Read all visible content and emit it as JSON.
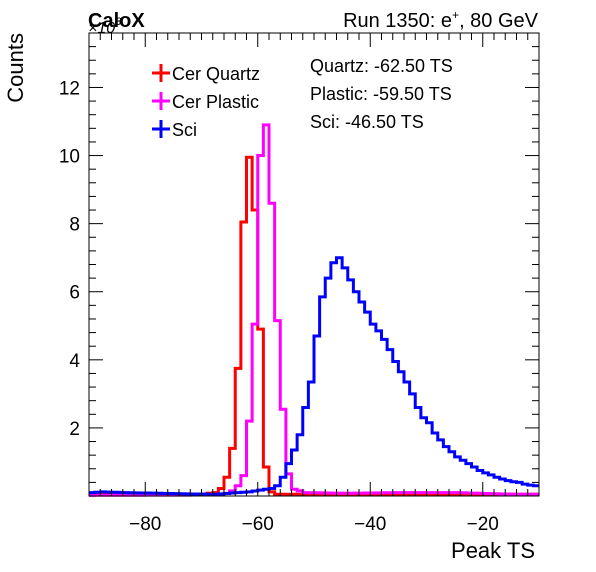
{
  "header": {
    "left_label": "CaloX",
    "exponent_label": "×10",
    "exponent_power": "3",
    "run_prefix": "Run 1350: e",
    "run_sup": "+",
    "run_suffix": ", 80 GeV"
  },
  "annotations": [
    "Quartz: -62.50 TS",
    "Plastic: -59.50 TS",
    "Sci: -46.50 TS"
  ],
  "chart_data": {
    "type": "line",
    "xlabel": "Peak TS",
    "ylabel": "Counts",
    "y_multiplier": 1000,
    "xlim": [
      -90,
      -10
    ],
    "ylim": [
      0,
      13.6
    ],
    "x_ticks": [
      -80,
      -60,
      -40,
      -20
    ],
    "x_tick_labels": [
      "−80",
      "−60",
      "−40",
      "−20"
    ],
    "y_ticks": [
      2,
      4,
      6,
      8,
      10,
      12
    ],
    "y_tick_labels": [
      "2",
      "4",
      "6",
      "8",
      "10",
      "12"
    ],
    "bin_width": 1,
    "legend_position": "top-left",
    "series": [
      {
        "name": "Cer Quartz",
        "color": "#ff0000",
        "bins": [
          {
            "x": -90,
            "y": 0.06
          },
          {
            "x": -85,
            "y": 0.06
          },
          {
            "x": -75,
            "y": 0.05
          },
          {
            "x": -70,
            "y": 0.06
          },
          {
            "x": -68,
            "y": 0.1
          },
          {
            "x": -67,
            "y": 0.22
          },
          {
            "x": -66,
            "y": 0.55
          },
          {
            "x": -65,
            "y": 1.4
          },
          {
            "x": -64,
            "y": 3.75
          },
          {
            "x": -63,
            "y": 8.05
          },
          {
            "x": -62,
            "y": 9.95
          },
          {
            "x": -61,
            "y": 8.4
          },
          {
            "x": -60,
            "y": 4.9
          },
          {
            "x": -59,
            "y": 0.85
          },
          {
            "x": -58,
            "y": 0.12
          },
          {
            "x": -57,
            "y": 0.05
          },
          {
            "x": -10,
            "y": 0.05
          }
        ]
      },
      {
        "name": "Cer Plastic",
        "color": "#ff00ff",
        "bins": [
          {
            "x": -90,
            "y": 0.02
          },
          {
            "x": -67,
            "y": 0.03
          },
          {
            "x": -66,
            "y": 0.08
          },
          {
            "x": -65,
            "y": 0.15
          },
          {
            "x": -64,
            "y": 0.3
          },
          {
            "x": -63,
            "y": 0.6
          },
          {
            "x": -62,
            "y": 2.2
          },
          {
            "x": -61,
            "y": 5.05
          },
          {
            "x": -60,
            "y": 10.0
          },
          {
            "x": -59,
            "y": 10.9
          },
          {
            "x": -58,
            "y": 8.6
          },
          {
            "x": -57,
            "y": 5.15
          },
          {
            "x": -56,
            "y": 2.55
          },
          {
            "x": -55,
            "y": 0.65
          },
          {
            "x": -54,
            "y": 0.2
          },
          {
            "x": -53,
            "y": 0.15
          },
          {
            "x": -52,
            "y": 0.1
          },
          {
            "x": -45,
            "y": 0.08
          },
          {
            "x": -35,
            "y": 0.1
          },
          {
            "x": -25,
            "y": 0.1
          },
          {
            "x": -15,
            "y": 0.05
          },
          {
            "x": -12,
            "y": 0.05
          },
          {
            "x": -10,
            "y": 0.05
          }
        ]
      },
      {
        "name": "Sci",
        "color": "#0000ff",
        "bins": [
          {
            "x": -90,
            "y": 0.1
          },
          {
            "x": -88,
            "y": 0.12
          },
          {
            "x": -84,
            "y": 0.1
          },
          {
            "x": -78,
            "y": 0.08
          },
          {
            "x": -72,
            "y": 0.06
          },
          {
            "x": -68,
            "y": 0.05
          },
          {
            "x": -64,
            "y": 0.1
          },
          {
            "x": -62,
            "y": 0.12
          },
          {
            "x": -59,
            "y": 0.2
          },
          {
            "x": -58,
            "y": 0.22
          },
          {
            "x": -57,
            "y": 0.3
          },
          {
            "x": -56,
            "y": 0.55
          },
          {
            "x": -55,
            "y": 0.95
          },
          {
            "x": -54,
            "y": 1.35
          },
          {
            "x": -53,
            "y": 1.8
          },
          {
            "x": -52,
            "y": 2.6
          },
          {
            "x": -51,
            "y": 3.35
          },
          {
            "x": -50,
            "y": 4.7
          },
          {
            "x": -49,
            "y": 5.85
          },
          {
            "x": -48,
            "y": 6.4
          },
          {
            "x": -47,
            "y": 6.85
          },
          {
            "x": -46,
            "y": 7.0
          },
          {
            "x": -45,
            "y": 6.7
          },
          {
            "x": -44,
            "y": 6.35
          },
          {
            "x": -43,
            "y": 6.0
          },
          {
            "x": -42,
            "y": 5.7
          },
          {
            "x": -41,
            "y": 5.4
          },
          {
            "x": -40,
            "y": 5.05
          },
          {
            "x": -39,
            "y": 4.85
          },
          {
            "x": -38,
            "y": 4.6
          },
          {
            "x": -37,
            "y": 4.3
          },
          {
            "x": -36,
            "y": 3.95
          },
          {
            "x": -35,
            "y": 3.65
          },
          {
            "x": -34,
            "y": 3.35
          },
          {
            "x": -33,
            "y": 3.0
          },
          {
            "x": -32,
            "y": 2.6
          },
          {
            "x": -31,
            "y": 2.3
          },
          {
            "x": -30,
            "y": 2.15
          },
          {
            "x": -29,
            "y": 1.85
          },
          {
            "x": -28,
            "y": 1.65
          },
          {
            "x": -27,
            "y": 1.45
          },
          {
            "x": -26,
            "y": 1.3
          },
          {
            "x": -25,
            "y": 1.15
          },
          {
            "x": -24,
            "y": 1.05
          },
          {
            "x": -23,
            "y": 0.95
          },
          {
            "x": -22,
            "y": 0.85
          },
          {
            "x": -21,
            "y": 0.75
          },
          {
            "x": -20,
            "y": 0.68
          },
          {
            "x": -19,
            "y": 0.62
          },
          {
            "x": -18,
            "y": 0.55
          },
          {
            "x": -17,
            "y": 0.5
          },
          {
            "x": -16,
            "y": 0.45
          },
          {
            "x": -15,
            "y": 0.42
          },
          {
            "x": -14,
            "y": 0.4
          },
          {
            "x": -13,
            "y": 0.35
          },
          {
            "x": -12,
            "y": 0.32
          },
          {
            "x": -11,
            "y": 0.3
          },
          {
            "x": -10,
            "y": 0.3
          }
        ]
      }
    ]
  }
}
